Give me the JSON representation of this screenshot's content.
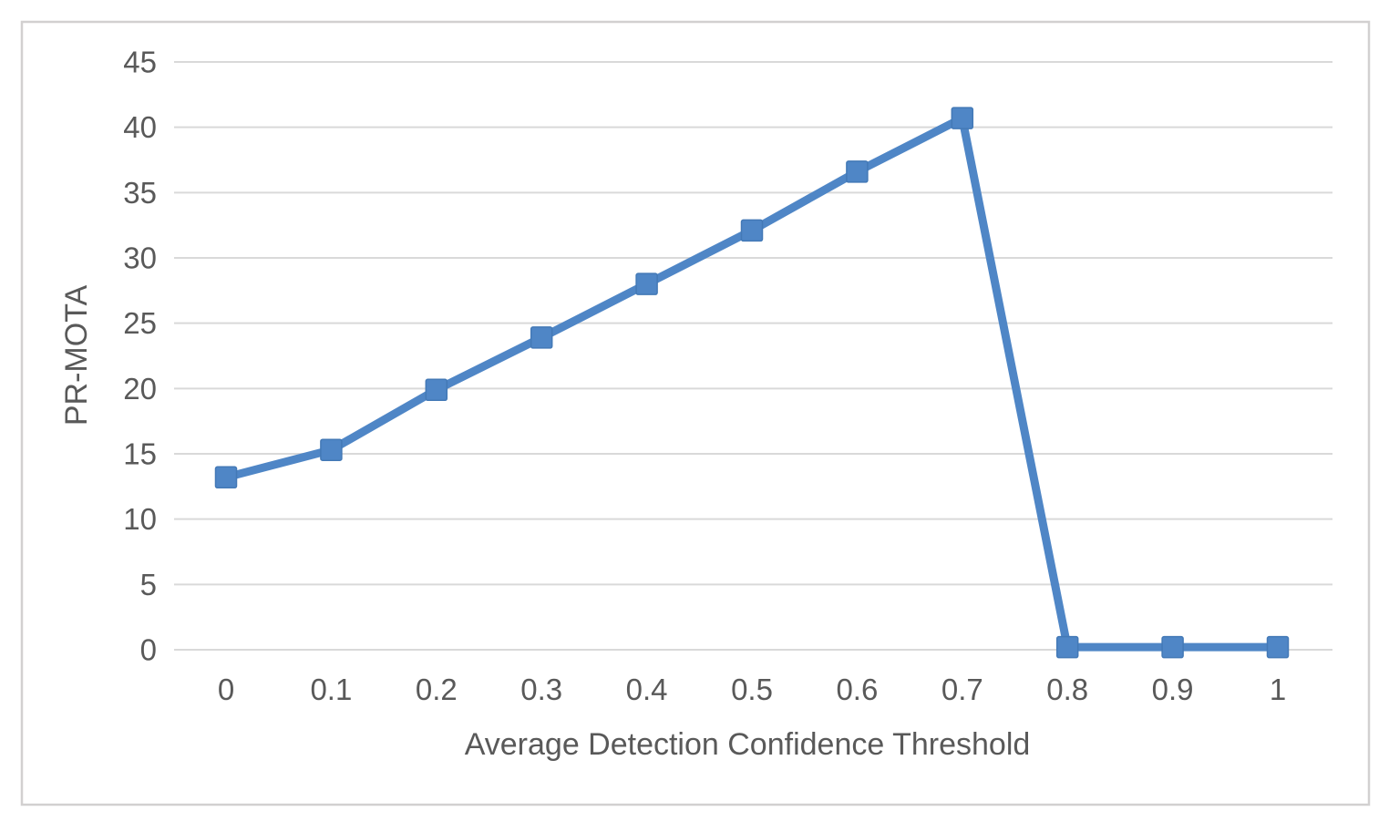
{
  "chart_data": {
    "type": "line",
    "title": "",
    "xlabel": "Average Detection Confidence Threshold",
    "ylabel": "PR-MOTA",
    "categories": [
      "0",
      "0.1",
      "0.2",
      "0.3",
      "0.4",
      "0.5",
      "0.6",
      "0.7",
      "0.8",
      "0.9",
      "1"
    ],
    "series": [
      {
        "name": "PR-MOTA",
        "values": [
          13.2,
          15.3,
          19.9,
          23.9,
          28.0,
          32.1,
          36.6,
          40.7,
          0.2,
          0.2,
          0.2
        ]
      }
    ],
    "ylim": [
      0,
      45
    ],
    "ytick_step": 5,
    "yticks": [
      0,
      5,
      10,
      15,
      20,
      25,
      30,
      35,
      40,
      45
    ],
    "grid": "horizontal",
    "legend": "none",
    "marker": "square",
    "colors": {
      "line": "#4F86C6",
      "marker_fill": "#4F86C6",
      "marker_edge": "#4379B6",
      "grid": "#D9D9D9",
      "axis_text": "#595959",
      "frame_border": "#D2D0D0",
      "background": "#FFFFFF"
    }
  }
}
